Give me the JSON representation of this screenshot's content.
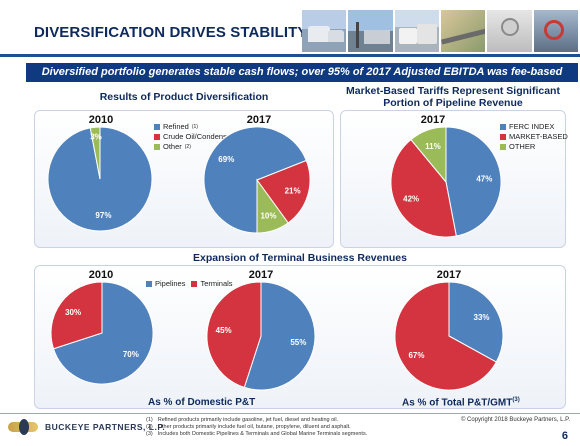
{
  "header": {
    "title": "DIVERSIFICATION DRIVES STABILITY",
    "banner": "Diversified portfolio generates stable cash flows; over 95% of 2017 Adjusted EBITDA was fee-based"
  },
  "colors": {
    "blue": "#4f81bd",
    "red": "#d4343f",
    "green": "#9bbb59",
    "navy": "#0f3a80"
  },
  "sections": {
    "product": {
      "title": "Results of Product Diversification"
    },
    "tariffs": {
      "title_line1": "Market-Based Tariffs Represent Significant",
      "title_line2": "Portion of Pipeline Revenue"
    },
    "terminal": {
      "title": "Expansion of Terminal Business Revenues"
    }
  },
  "legends": {
    "product": [
      {
        "label": "Refined",
        "sup": "(1)",
        "color": "#4f81bd"
      },
      {
        "label": "Crude Oil/Condensate",
        "sup": "",
        "color": "#d4343f"
      },
      {
        "label": "Other",
        "sup": "(2)",
        "color": "#9bbb59"
      }
    ],
    "tariffs": [
      {
        "label": "FERC INDEX",
        "sup": "",
        "color": "#4f81bd"
      },
      {
        "label": "MARKET-BASED",
        "sup": "",
        "color": "#d4343f"
      },
      {
        "label": "OTHER",
        "sup": "",
        "color": "#9bbb59"
      }
    ],
    "terminal": [
      {
        "label": "Pipelines",
        "sup": "",
        "color": "#4f81bd"
      },
      {
        "label": "Terminals",
        "sup": "",
        "color": "#d4343f"
      }
    ]
  },
  "captions": {
    "domestic": "As % of Domestic P&T",
    "total": "As % of Total P&T/GMT",
    "total_sup": "(3)"
  },
  "chart_data": [
    {
      "type": "pie",
      "title": "2010",
      "labels": [
        "Refined",
        "Crude Oil/Condensate",
        "Other"
      ],
      "values": [
        97,
        0,
        3
      ],
      "value_labels": [
        "97%",
        "",
        "3%"
      ],
      "colors": [
        "#4f81bd",
        "#d4343f",
        "#9bbb59"
      ]
    },
    {
      "type": "pie",
      "title": "2017",
      "labels": [
        "Refined",
        "Crude Oil/Condensate",
        "Other"
      ],
      "values": [
        69,
        21,
        10
      ],
      "value_labels": [
        "69%",
        "21%",
        "10%"
      ],
      "colors": [
        "#4f81bd",
        "#d4343f",
        "#9bbb59"
      ]
    },
    {
      "type": "pie",
      "title": "2017",
      "labels": [
        "FERC INDEX",
        "MARKET-BASED",
        "OTHER"
      ],
      "values": [
        47,
        42,
        11
      ],
      "value_labels": [
        "47%",
        "42%",
        "11%"
      ],
      "colors": [
        "#4f81bd",
        "#d4343f",
        "#9bbb59"
      ]
    },
    {
      "type": "pie",
      "title": "2010",
      "labels": [
        "Pipelines",
        "Terminals"
      ],
      "values": [
        70,
        30
      ],
      "value_labels": [
        "70%",
        "30%"
      ],
      "colors": [
        "#4f81bd",
        "#d4343f"
      ]
    },
    {
      "type": "pie",
      "title": "2017",
      "labels": [
        "Pipelines",
        "Terminals"
      ],
      "values": [
        55,
        45
      ],
      "value_labels": [
        "55%",
        "45%"
      ],
      "colors": [
        "#4f81bd",
        "#d4343f"
      ]
    },
    {
      "type": "pie",
      "title": "2017",
      "labels": [
        "Pipelines",
        "Terminals"
      ],
      "values": [
        33,
        67
      ],
      "value_labels": [
        "33%",
        "67%"
      ],
      "colors": [
        "#4f81bd",
        "#d4343f"
      ]
    }
  ],
  "footer": {
    "company": "BUCKEYE PARTNERS, L.P.",
    "footnotes": [
      {
        "num": "(1)",
        "text": "Refined products primarily include gasoline, jet fuel, diesel and heating oil."
      },
      {
        "num": "(2)",
        "text": "Other products primarily include fuel oil, butane, propylene, diluent and asphalt."
      },
      {
        "num": "(3)",
        "text": "Includes both Domestic Pipelines & Terminals and Global Marine Terminals segments."
      }
    ],
    "copyright": "© Copyright 2018 Buckeye Partners, L.P.",
    "page": "6"
  }
}
